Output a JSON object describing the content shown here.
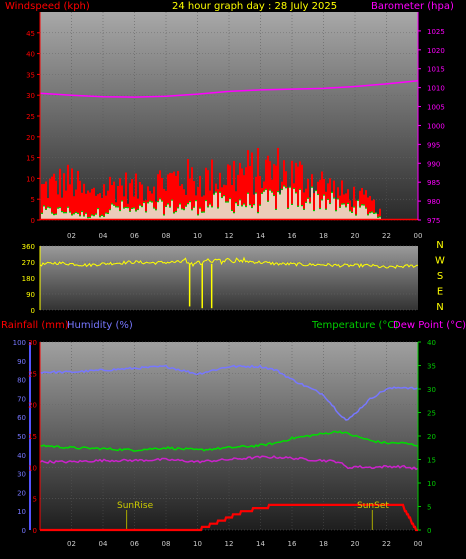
{
  "header": {
    "windspeed_label": "Windspeed (kph)",
    "title": "24 hour graph day : 28 July 2025",
    "barometer_label": "Barometer (hpa)",
    "rainfall_label": "Rainfall (mm)",
    "humidity_label": "Humidity (%)",
    "temperature_label": "Temperature (°C)",
    "dewpoint_label": "Dew Point (°C)",
    "sunrise_label": "SunRise",
    "sunset_label": "SunSet"
  },
  "colors": {
    "wind": "#ff0000",
    "gust": "#ff0000",
    "avgwind": "#00cc00",
    "windfill": "#e8ffe8",
    "barometer": "#ff00ff",
    "winddir": "#ffff00",
    "rain": "#ff0000",
    "humidity": "#7777ff",
    "temperature": "#00dd00",
    "dewpoint": "#cc22cc",
    "axis_text_red": "#ff0000",
    "axis_text_green": "#00cc00",
    "axis_text_yellow": "#ffff00",
    "sun": "#aaaa00"
  },
  "chart_data": [
    {
      "type": "bar",
      "name": "wind_barometer",
      "x_ticks": [
        "02",
        "04",
        "06",
        "08",
        "10",
        "12",
        "14",
        "16",
        "18",
        "20",
        "22",
        "00"
      ],
      "ylabel": "Windspeed (kph)",
      "ylim": [
        0,
        50
      ],
      "y_ticks": [
        0,
        5,
        10,
        15,
        20,
        25,
        30,
        35,
        40,
        45
      ],
      "y2label": "Barometer (hpa)",
      "y2lim": [
        975,
        1030
      ],
      "y2_ticks": [
        975,
        980,
        985,
        990,
        995,
        1000,
        1005,
        1010,
        1015,
        1020,
        1025
      ],
      "barometer": {
        "x": [
          0,
          2,
          4,
          6,
          8,
          10,
          12,
          14,
          16,
          18,
          20,
          22,
          24
        ],
        "values": [
          1008.5,
          1008,
          1007.6,
          1007.5,
          1007.7,
          1008.3,
          1009,
          1009.4,
          1009.6,
          1009.8,
          1010.3,
          1011,
          1011.8
        ]
      },
      "wind_envelope": {
        "x": [
          0,
          1,
          2,
          3,
          4,
          5,
          6,
          7,
          8,
          9,
          10,
          11,
          12,
          13,
          14,
          15,
          16,
          17,
          18,
          19,
          20,
          21,
          22,
          23,
          24
        ],
        "gust": [
          10,
          12,
          13,
          8,
          10,
          12,
          10,
          12,
          13,
          14,
          13,
          14,
          15,
          16,
          16,
          17,
          15,
          14,
          12,
          9,
          8,
          6,
          0,
          0,
          0
        ],
        "avg": [
          2,
          2,
          2,
          1,
          2,
          3,
          2,
          3,
          3,
          3,
          3,
          4,
          4,
          4,
          4,
          5,
          5,
          5,
          5,
          3,
          3,
          2,
          0,
          0,
          0
        ]
      }
    },
    {
      "type": "line",
      "name": "wind_direction",
      "ylim": [
        0,
        360
      ],
      "y_ticks": [
        0,
        90,
        180,
        270,
        360
      ],
      "direction_labels": [
        "N",
        "W",
        "S",
        "E",
        "N"
      ],
      "x": [
        0,
        1,
        2,
        3,
        4,
        5,
        6,
        7,
        8,
        9,
        10,
        11,
        12,
        13,
        14,
        15,
        16,
        17,
        18,
        19,
        20,
        21,
        22,
        23,
        24
      ],
      "values": [
        255,
        265,
        260,
        252,
        260,
        265,
        270,
        265,
        268,
        270,
        265,
        275,
        285,
        275,
        268,
        260,
        258,
        255,
        255,
        250,
        250,
        250,
        238,
        245,
        250
      ],
      "dips": [
        {
          "x": 9.5,
          "value": 20
        },
        {
          "x": 10.3,
          "value": 10
        },
        {
          "x": 10.9,
          "value": 10
        }
      ]
    },
    {
      "type": "line",
      "name": "temp_hum_rain",
      "x_ticks": [
        "02",
        "04",
        "06",
        "08",
        "10",
        "12",
        "14",
        "16",
        "18",
        "20",
        "22",
        "00"
      ],
      "rain_label": "Rainfall (mm)",
      "rain_ylim": [
        0,
        30
      ],
      "rain_ticks": [
        0,
        5,
        10,
        15,
        20,
        25,
        30
      ],
      "humidity_label": "Humidity (%)",
      "humidity_ylim": [
        0,
        100
      ],
      "humidity_ticks": [
        0,
        10,
        20,
        30,
        40,
        50,
        60,
        70,
        80,
        90,
        100
      ],
      "temp_label": "Temperature (°C)",
      "temp_ylim": [
        0,
        40
      ],
      "temp_ticks": [
        0,
        5,
        10,
        15,
        20,
        25,
        30,
        35,
        40
      ],
      "series": [
        {
          "name": "Humidity (%)",
          "axis": "humidity",
          "x": [
            0,
            2,
            4,
            6,
            8,
            10,
            12,
            14,
            15,
            16,
            17,
            18,
            19,
            19.5,
            20,
            21,
            22,
            23,
            24
          ],
          "values": [
            84,
            84,
            85,
            86,
            87,
            83,
            87,
            87,
            85,
            80,
            76,
            72,
            62,
            58,
            62,
            70,
            75,
            76,
            75
          ]
        },
        {
          "name": "Temperature (°C)",
          "axis": "temp",
          "x": [
            0,
            2,
            4,
            6,
            8,
            10,
            12,
            14,
            15,
            16,
            17,
            18,
            19,
            20,
            21,
            22,
            23,
            24
          ],
          "values": [
            18,
            17.5,
            17.3,
            17,
            17.5,
            17,
            17.5,
            18,
            18.5,
            19.5,
            20,
            20.5,
            21,
            20,
            19,
            18.5,
            18.5,
            18
          ]
        },
        {
          "name": "Dew Point (°C)",
          "axis": "temp",
          "x": [
            0,
            2,
            4,
            6,
            8,
            10,
            12,
            14,
            15,
            16,
            17,
            18,
            19,
            19.5,
            20,
            21,
            22,
            23,
            24
          ],
          "values": [
            14.5,
            14.5,
            14.8,
            14.8,
            15,
            14.5,
            15,
            15.5,
            15.5,
            15.3,
            15,
            14.8,
            14.5,
            13.2,
            13.5,
            13.3,
            13.5,
            13.5,
            13
          ]
        },
        {
          "name": "Rainfall (mm)",
          "axis": "rain",
          "x": [
            0,
            10,
            11,
            12,
            13,
            14,
            15,
            16,
            17,
            18,
            19,
            20,
            21,
            22,
            23,
            23.9
          ],
          "values": [
            0,
            0,
            1,
            2,
            3,
            3.5,
            4,
            4,
            4,
            4,
            4,
            4,
            4,
            4,
            4,
            0
          ]
        }
      ],
      "sunrise_x": 5.5,
      "sunset_x": 21.1
    }
  ]
}
